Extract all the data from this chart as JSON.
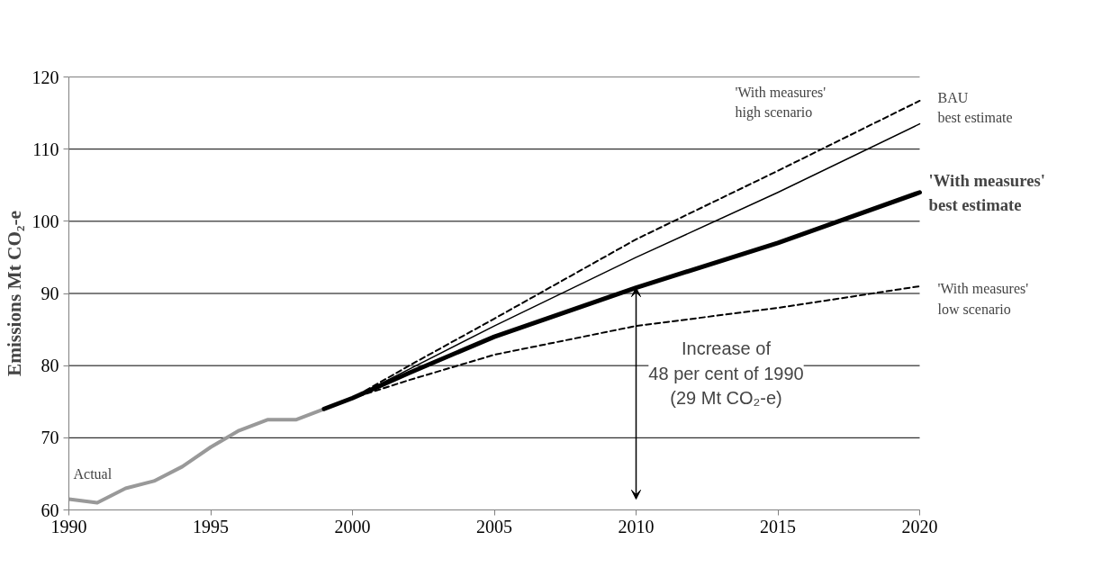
{
  "chart_data": {
    "type": "line",
    "ylabel": "Emissions Mt CO₂-e",
    "xlim": [
      1990,
      2020
    ],
    "xticks": [
      1990,
      1995,
      2000,
      2005,
      2010,
      2015,
      2020
    ],
    "ylim": [
      60,
      120
    ],
    "yticks": [
      60,
      70,
      80,
      90,
      100,
      110,
      120
    ],
    "grid": "y",
    "series": [
      {
        "name": "Actual",
        "color": "#999999",
        "line_style": "solid",
        "x": [
          1990,
          1991,
          1992,
          1993,
          1994,
          1995,
          1996,
          1997,
          1998,
          1999
        ],
        "values": [
          61.5,
          61,
          63,
          64,
          66,
          68.7,
          71,
          72.5,
          72.5,
          74
        ]
      },
      {
        "name": "'With measures'\nhigh scenario",
        "color": "#000000",
        "line_style": "dashed",
        "x": [
          1999,
          2000,
          2002,
          2005,
          2010,
          2015,
          2020
        ],
        "values": [
          74,
          75.5,
          80,
          86.5,
          97.5,
          107,
          116.7
        ]
      },
      {
        "name": "BAU\nbest estimate",
        "color": "#000000",
        "line_style": "solid",
        "x": [
          1999,
          2000,
          2002,
          2005,
          2010,
          2015,
          2020
        ],
        "values": [
          74,
          75.5,
          79.5,
          85.5,
          95,
          104,
          113.5
        ]
      },
      {
        "name": "'With measures'\nbest estimate",
        "color": "#000000",
        "line_style": "solid",
        "x": [
          1999,
          2000,
          2002,
          2005,
          2010,
          2015,
          2020
        ],
        "values": [
          74,
          75.5,
          79,
          84,
          90.8,
          97,
          104
        ]
      },
      {
        "name": "'With measures'\nlow scenario",
        "color": "#000000",
        "line_style": "dashed",
        "x": [
          1999,
          2000,
          2002,
          2005,
          2010,
          2015,
          2020
        ],
        "values": [
          74,
          75.5,
          78,
          81.5,
          85.5,
          88,
          91
        ]
      }
    ],
    "annotations": [
      {
        "text": "Increase of\n48 per cent of 1990\n(29 Mt CO₂-e)",
        "x": 2010,
        "y": 90.8
      }
    ]
  }
}
